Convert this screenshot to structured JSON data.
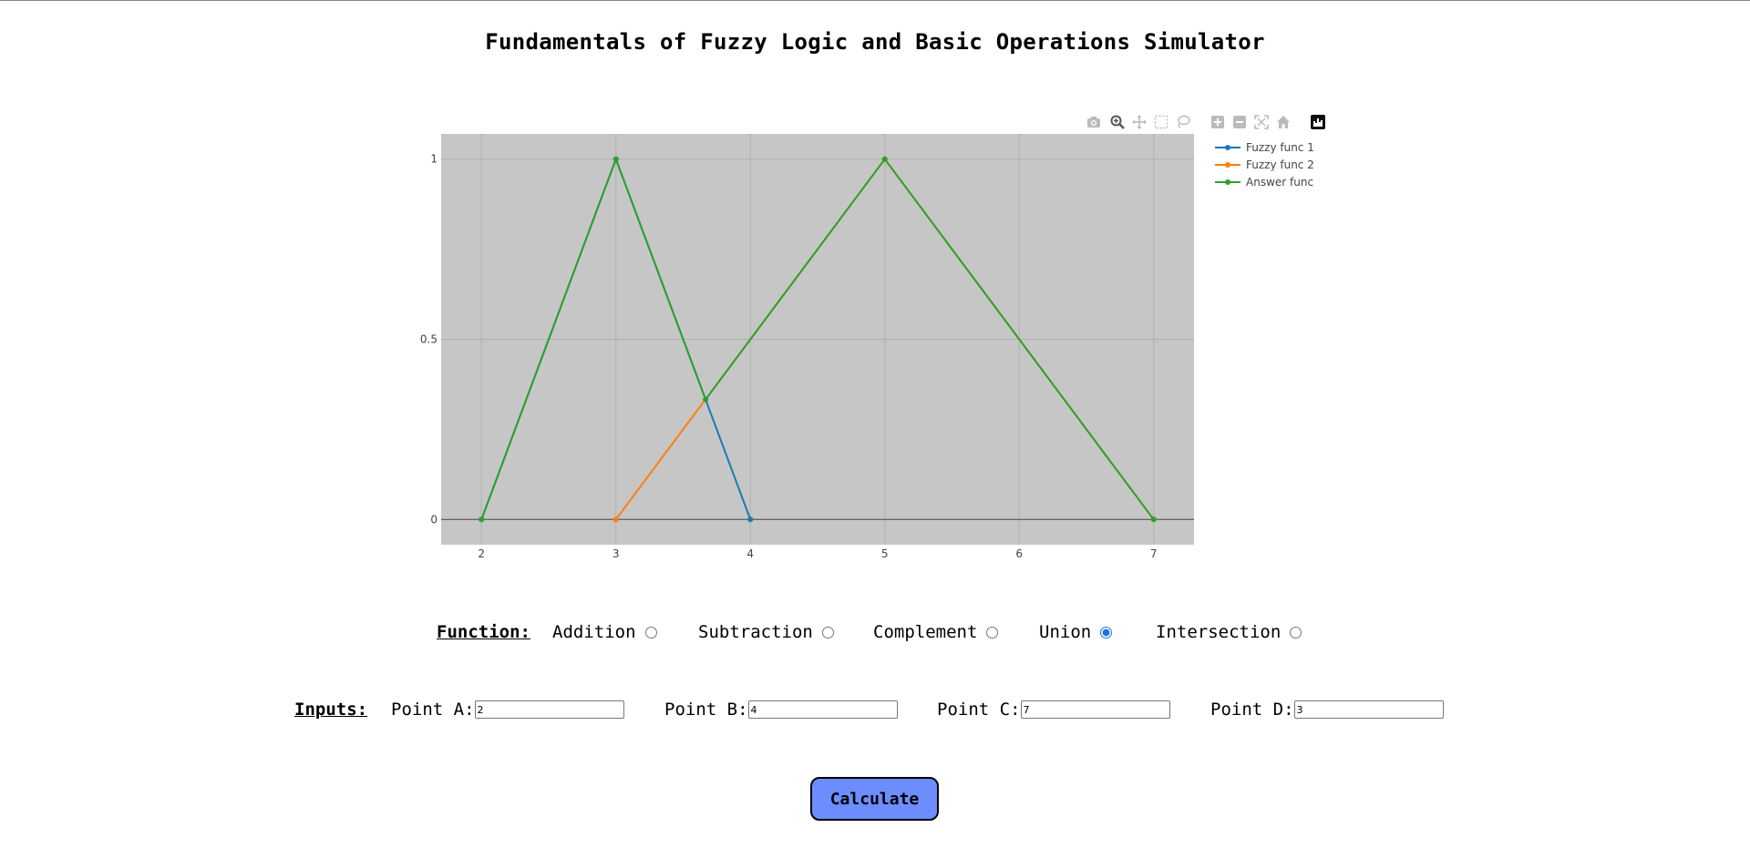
{
  "page": {
    "title": "Fundamentals of Fuzzy Logic and Basic Operations Simulator"
  },
  "modebar": {
    "buttons": [
      {
        "name": "camera-icon",
        "active": false
      },
      {
        "name": "zoom-icon",
        "active": true
      },
      {
        "name": "pan-icon",
        "active": false
      },
      {
        "name": "box-select-icon",
        "active": false
      },
      {
        "name": "lasso-select-icon",
        "active": false
      },
      {
        "name": "zoom-in-icon",
        "active": false
      },
      {
        "name": "zoom-out-icon",
        "active": false
      },
      {
        "name": "autoscale-icon",
        "active": false
      },
      {
        "name": "reset-axes-icon",
        "active": false
      },
      {
        "name": "plotly-logo-icon",
        "active": false
      }
    ]
  },
  "chart_data": {
    "type": "line",
    "xlim": [
      1.7,
      7.3
    ],
    "ylim": [
      -0.07,
      1.07
    ],
    "xticks": [
      2,
      3,
      4,
      5,
      6,
      7
    ],
    "yticks": [
      0,
      0.5,
      1
    ],
    "grid": true,
    "plot_bgcolor": "#c6c6c6",
    "legend_position": "right",
    "series": [
      {
        "name": "Fuzzy func 1",
        "color": "#1f77b4",
        "x": [
          2,
          3,
          4
        ],
        "y": [
          0,
          1,
          0
        ]
      },
      {
        "name": "Fuzzy func 2",
        "color": "#ff7f0e",
        "x": [
          3,
          5,
          7
        ],
        "y": [
          0,
          1,
          0
        ]
      },
      {
        "name": "Answer func",
        "color": "#2ca02c",
        "x": [
          2,
          3,
          3.667,
          5,
          7
        ],
        "y": [
          0,
          1,
          0.333,
          1,
          0
        ]
      }
    ]
  },
  "function": {
    "label": "Function:",
    "options": [
      {
        "label": "Addition",
        "checked": false
      },
      {
        "label": "Subtraction",
        "checked": false
      },
      {
        "label": "Complement",
        "checked": false
      },
      {
        "label": "Union",
        "checked": true
      },
      {
        "label": "Intersection",
        "checked": false
      }
    ]
  },
  "inputs": {
    "label": "Inputs:",
    "points": [
      {
        "label": "Point A:",
        "value": "2"
      },
      {
        "label": "Point B:",
        "value": "4"
      },
      {
        "label": "Point C:",
        "value": "7"
      },
      {
        "label": "Point D:",
        "value": "3"
      }
    ]
  },
  "calculate_label": "Calculate"
}
